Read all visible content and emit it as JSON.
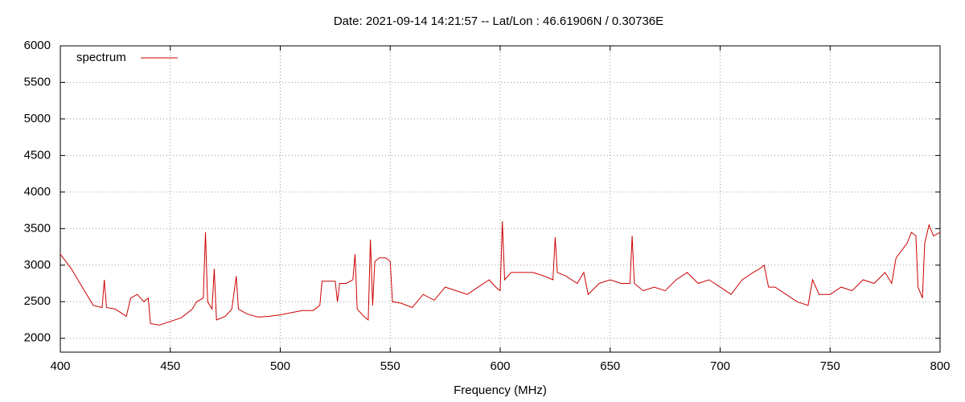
{
  "chart_data": {
    "type": "line",
    "title": "Date: 2021-09-14 14:21:57  --  Lat/Lon : 46.61906N / 0.30736E",
    "x_label": "Frequency (MHz)",
    "x": [
      400,
      405,
      410,
      415,
      419,
      420,
      421,
      425,
      430,
      432,
      435,
      438,
      440,
      441,
      445,
      450,
      455,
      460,
      462,
      465,
      466,
      467,
      469,
      470,
      471,
      475,
      478,
      480,
      481,
      485,
      490,
      495,
      500,
      505,
      510,
      515,
      518,
      519,
      525,
      526,
      527,
      530,
      533,
      534,
      535,
      538,
      540,
      541,
      542,
      543,
      545,
      548,
      550,
      551,
      555,
      560,
      565,
      570,
      575,
      580,
      585,
      590,
      595,
      598,
      600,
      601,
      602,
      605,
      610,
      615,
      620,
      624,
      625,
      626,
      630,
      635,
      638,
      640,
      645,
      650,
      655,
      659,
      660,
      661,
      665,
      670,
      675,
      680,
      685,
      690,
      695,
      700,
      705,
      710,
      715,
      718,
      720,
      722,
      725,
      730,
      735,
      740,
      742,
      745,
      750,
      755,
      760,
      765,
      770,
      775,
      778,
      780,
      785,
      787,
      789,
      790,
      792,
      793,
      795,
      797,
      800
    ],
    "series": [
      {
        "name": "spectrum",
        "color": "#cc0000",
        "values": [
          3150,
          2950,
          2700,
          2450,
          2420,
          2800,
          2420,
          2400,
          2300,
          2550,
          2600,
          2500,
          2550,
          2200,
          2180,
          2230,
          2280,
          2400,
          2500,
          2550,
          3450,
          2500,
          2400,
          2950,
          2250,
          2300,
          2400,
          2850,
          2400,
          2330,
          2290,
          2300,
          2320,
          2350,
          2380,
          2380,
          2450,
          2780,
          2780,
          2500,
          2750,
          2750,
          2800,
          3150,
          2400,
          2300,
          2250,
          3350,
          2450,
          3050,
          3100,
          3100,
          3050,
          2500,
          2480,
          2420,
          2600,
          2520,
          2700,
          2650,
          2600,
          2700,
          2800,
          2700,
          2650,
          3600,
          2800,
          2900,
          2900,
          2900,
          2850,
          2800,
          3380,
          2900,
          2850,
          2750,
          2900,
          2600,
          2750,
          2800,
          2750,
          2750,
          3400,
          2750,
          2650,
          2700,
          2650,
          2800,
          2900,
          2750,
          2800,
          2700,
          2600,
          2800,
          2900,
          2950,
          3000,
          2700,
          2700,
          2600,
          2500,
          2450,
          2800,
          2600,
          2600,
          2700,
          2650,
          2800,
          2750,
          2900,
          2750,
          3100,
          3300,
          3450,
          3400,
          2700,
          2550,
          3300,
          3550,
          3400,
          3450
        ]
      }
    ],
    "xlim": [
      400,
      800
    ],
    "xticks": [
      400,
      450,
      500,
      550,
      600,
      650,
      700,
      750,
      800
    ],
    "ylim": [
      1810,
      6000
    ],
    "yticks": [
      2000,
      2500,
      3000,
      3500,
      4000,
      4500,
      5000,
      5500,
      6000
    ],
    "grid": true,
    "legend": "top-left"
  }
}
